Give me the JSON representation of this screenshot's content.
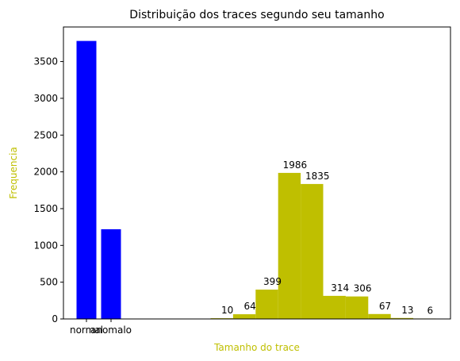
{
  "chart_data": {
    "type": "bar",
    "title": "Distribuição dos traces segundo seu tamanho",
    "xlabel": "Tamanho do trace",
    "ylabel": "Frequencia",
    "ylim": [
      0,
      3970
    ],
    "yticks": [
      "0",
      "500",
      "1000",
      "1500",
      "2000",
      "2500",
      "3000",
      "3500"
    ],
    "grid": false,
    "series": [
      {
        "color": "#0000ff",
        "categories": [
          "normal",
          "anomalo"
        ],
        "values": [
          3780,
          1220
        ]
      },
      {
        "color": "#bfbf00",
        "values": [
          10,
          64,
          399,
          1986,
          1835,
          314,
          306,
          67,
          13,
          6
        ],
        "labels": [
          "10",
          "64",
          "399",
          "1986",
          "1835",
          "314",
          "306",
          "67",
          "13",
          "6"
        ]
      }
    ],
    "colors": {
      "axis_title": "#bfbf00",
      "axis": "#000000"
    }
  }
}
